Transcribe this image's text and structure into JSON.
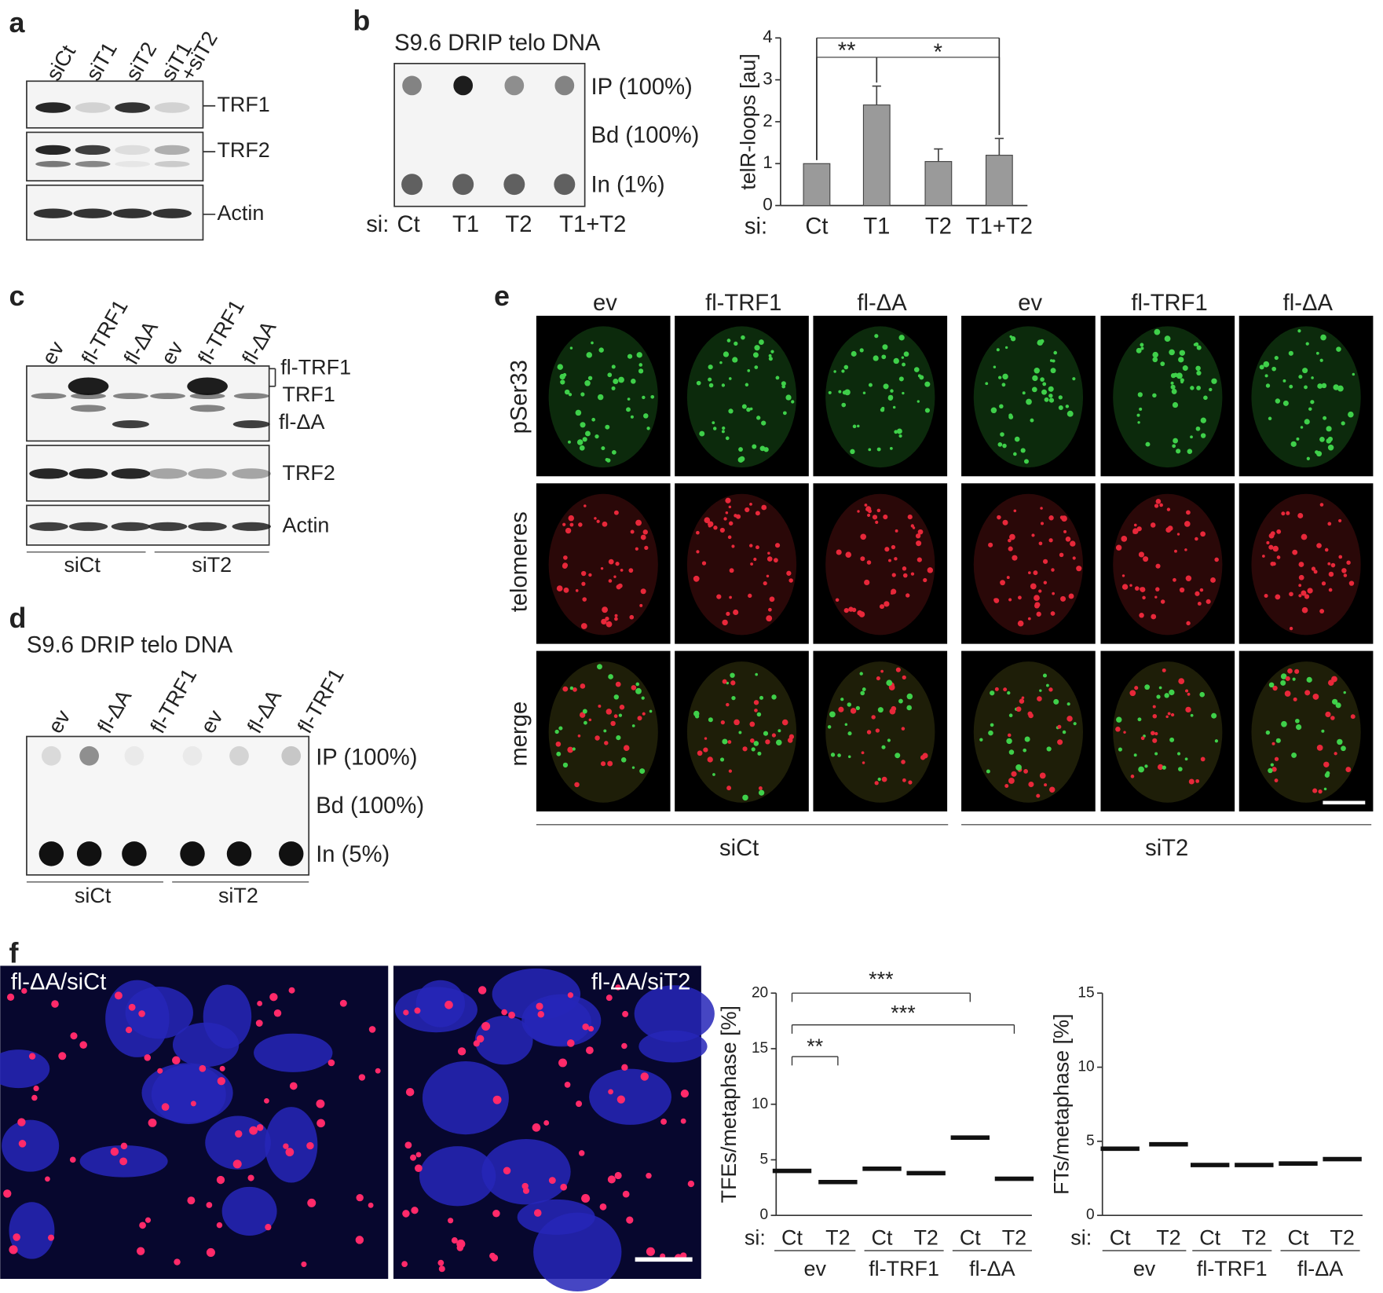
{
  "panels": {
    "a": {
      "label": "a",
      "lanes": [
        "siCt",
        "siT1",
        "siT2",
        [
          "siT1",
          "+siT2"
        ]
      ],
      "bands": [
        "TRF1",
        "TRF2",
        "Actin"
      ]
    },
    "b": {
      "label": "b",
      "title": "S9.6 DRIP telo DNA",
      "rows": [
        "IP (100%)",
        "Bd (100%)",
        "In (1%)"
      ],
      "prefix": "si:",
      "lanes": [
        "Ct",
        "T1",
        "T2",
        "T1+T2"
      ]
    },
    "c": {
      "label": "c",
      "lanes": [
        "ev",
        "fl-TRF1",
        "fl-ΔA",
        "ev",
        "fl-TRF1",
        "fl-ΔA"
      ],
      "bands": [
        "fl-TRF1",
        "TRF1",
        "fl-ΔA",
        "TRF2",
        "Actin"
      ],
      "groups": [
        "siCt",
        "siT2"
      ]
    },
    "d": {
      "label": "d",
      "title": "S9.6 DRIP telo DNA",
      "lanes": [
        "ev",
        "fl-ΔA",
        "fl-TRF1",
        "ev",
        "fl-ΔA",
        "fl-TRF1"
      ],
      "rows": [
        "IP (100%)",
        "Bd (100%)",
        "In (5%)"
      ],
      "groups": [
        "siCt",
        "siT2"
      ]
    },
    "e": {
      "label": "e",
      "columns": [
        "ev",
        "fl-TRF1",
        "fl-ΔA",
        "ev",
        "fl-TRF1",
        "fl-ΔA"
      ],
      "rows": [
        "pSer33",
        "telomeres",
        "merge"
      ],
      "groups": [
        "siCt",
        "siT2"
      ]
    },
    "f": {
      "label": "f",
      "images": [
        "fl-ΔA/siCt",
        "fl-ΔA/siT2"
      ]
    }
  },
  "chart_data": [
    {
      "type": "bar",
      "ylabel": "telR-loops [au]",
      "x_prefix": "si:",
      "categories": [
        "Ct",
        "T1",
        "T2",
        "T1+T2"
      ],
      "values": [
        1,
        2.4,
        1.05,
        1.2
      ],
      "errors": [
        null,
        0.45,
        0.3,
        0.4
      ],
      "color": "#9a9a9a",
      "ylim": [
        0,
        4
      ],
      "yticks": [
        0,
        1,
        2,
        3,
        4
      ],
      "annotations": [
        "**",
        "*"
      ]
    },
    {
      "type": "dot",
      "ylabel": "TFEs/metaphase [%]",
      "x_prefix": "si:",
      "categories": [
        "Ct",
        "T2",
        "Ct",
        "T2",
        "Ct",
        "T2"
      ],
      "groups": [
        "ev",
        "fl-TRF1",
        "fl-ΔA"
      ],
      "values": [
        4,
        3,
        4.2,
        3.8,
        7,
        3.3
      ],
      "color": "#6b8fc4",
      "ylim": [
        0,
        20
      ],
      "yticks": [
        0,
        5,
        10,
        15,
        20
      ],
      "annotations": [
        "***",
        "***",
        "**"
      ]
    },
    {
      "type": "dot",
      "ylabel": "FTs/metaphase [%]",
      "x_prefix": "si:",
      "categories": [
        "Ct",
        "T2",
        "Ct",
        "T2",
        "Ct",
        "T2"
      ],
      "groups": [
        "ev",
        "fl-TRF1",
        "fl-ΔA"
      ],
      "values": [
        4.5,
        4.8,
        3.4,
        3.4,
        3.5,
        3.8
      ],
      "color": "#6b8fc4",
      "ylim": [
        0,
        15
      ],
      "yticks": [
        0,
        5,
        10,
        15
      ]
    }
  ]
}
